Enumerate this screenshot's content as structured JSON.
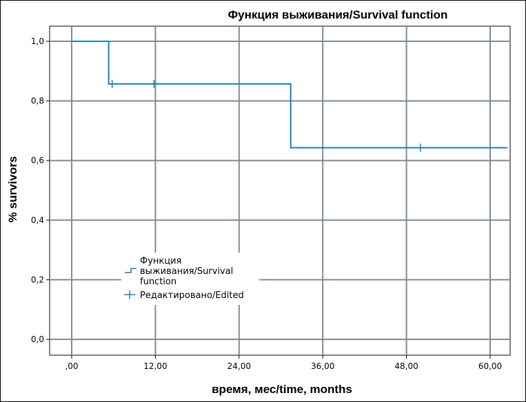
{
  "chart_data": {
    "type": "line",
    "title": "Функция выживания/Survival function",
    "xlabel": "время, мес/time, months",
    "ylabel": "% survivors",
    "xlim": [
      0,
      60
    ],
    "ylim": [
      0,
      1
    ],
    "x_ticks": [
      {
        "value": 0,
        "label": ",00"
      },
      {
        "value": 12,
        "label": "12,00"
      },
      {
        "value": 24,
        "label": "24,00"
      },
      {
        "value": 36,
        "label": "36,00"
      },
      {
        "value": 48,
        "label": "48,00"
      },
      {
        "value": 60,
        "label": "60,00"
      }
    ],
    "y_ticks": [
      {
        "value": 0.0,
        "label": "0,0"
      },
      {
        "value": 0.2,
        "label": "0,2"
      },
      {
        "value": 0.4,
        "label": "0,4"
      },
      {
        "value": 0.6,
        "label": "0,6"
      },
      {
        "value": 0.8,
        "label": "0,8"
      },
      {
        "value": 1.0,
        "label": "1,0"
      }
    ],
    "grid": true,
    "legend_position": "lower-left",
    "color": "#1a7fb4",
    "series": [
      {
        "name": "Функция выживания/Survival function",
        "step_points": [
          [
            0,
            1.0
          ],
          [
            5.3,
            1.0
          ],
          [
            5.3,
            0.857
          ],
          [
            31.4,
            0.857
          ],
          [
            31.4,
            0.643
          ],
          [
            62.5,
            0.643
          ]
        ]
      },
      {
        "name": "Редактировано/Edited",
        "censored": [
          [
            5.8,
            0.857
          ],
          [
            11.8,
            0.857
          ],
          [
            50.0,
            0.643
          ]
        ]
      }
    ],
    "legend": [
      {
        "lines": [
          "Функция",
          "выживания/Survival",
          "function"
        ],
        "marker": "step"
      },
      {
        "lines": [
          "Редактировано/Edited"
        ],
        "marker": "plus"
      }
    ]
  }
}
